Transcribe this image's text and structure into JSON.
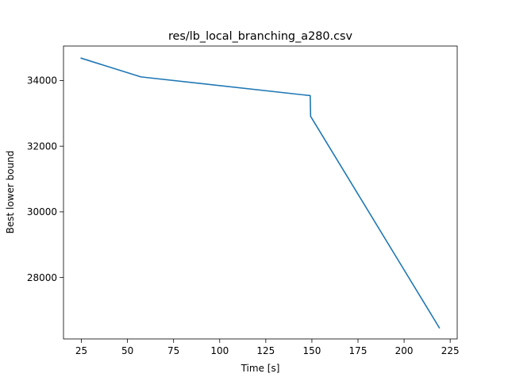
{
  "chart_data": {
    "type": "line",
    "title": "res/lb_local_branching_a280.csv",
    "xlabel": "Time [s]",
    "ylabel": "Best lower bound",
    "xlim": [
      15.3,
      228.8
    ],
    "ylim": [
      26130,
      35050
    ],
    "xticks": [
      25,
      50,
      75,
      100,
      125,
      150,
      175,
      200,
      225
    ],
    "xtick_labels": [
      "25",
      "50",
      "75",
      "100",
      "125",
      "150",
      "175",
      "200",
      "225"
    ],
    "yticks": [
      28000,
      30000,
      32000,
      34000
    ],
    "ytick_labels": [
      "28000",
      "30000",
      "32000",
      "34000"
    ],
    "grid": false,
    "series": [
      {
        "color": "#1f77b4",
        "x": [
          24.9,
          57.3,
          149.1,
          149.3,
          219.1
        ],
        "y": [
          34680,
          34110,
          33540,
          32910,
          26470
        ]
      }
    ]
  }
}
